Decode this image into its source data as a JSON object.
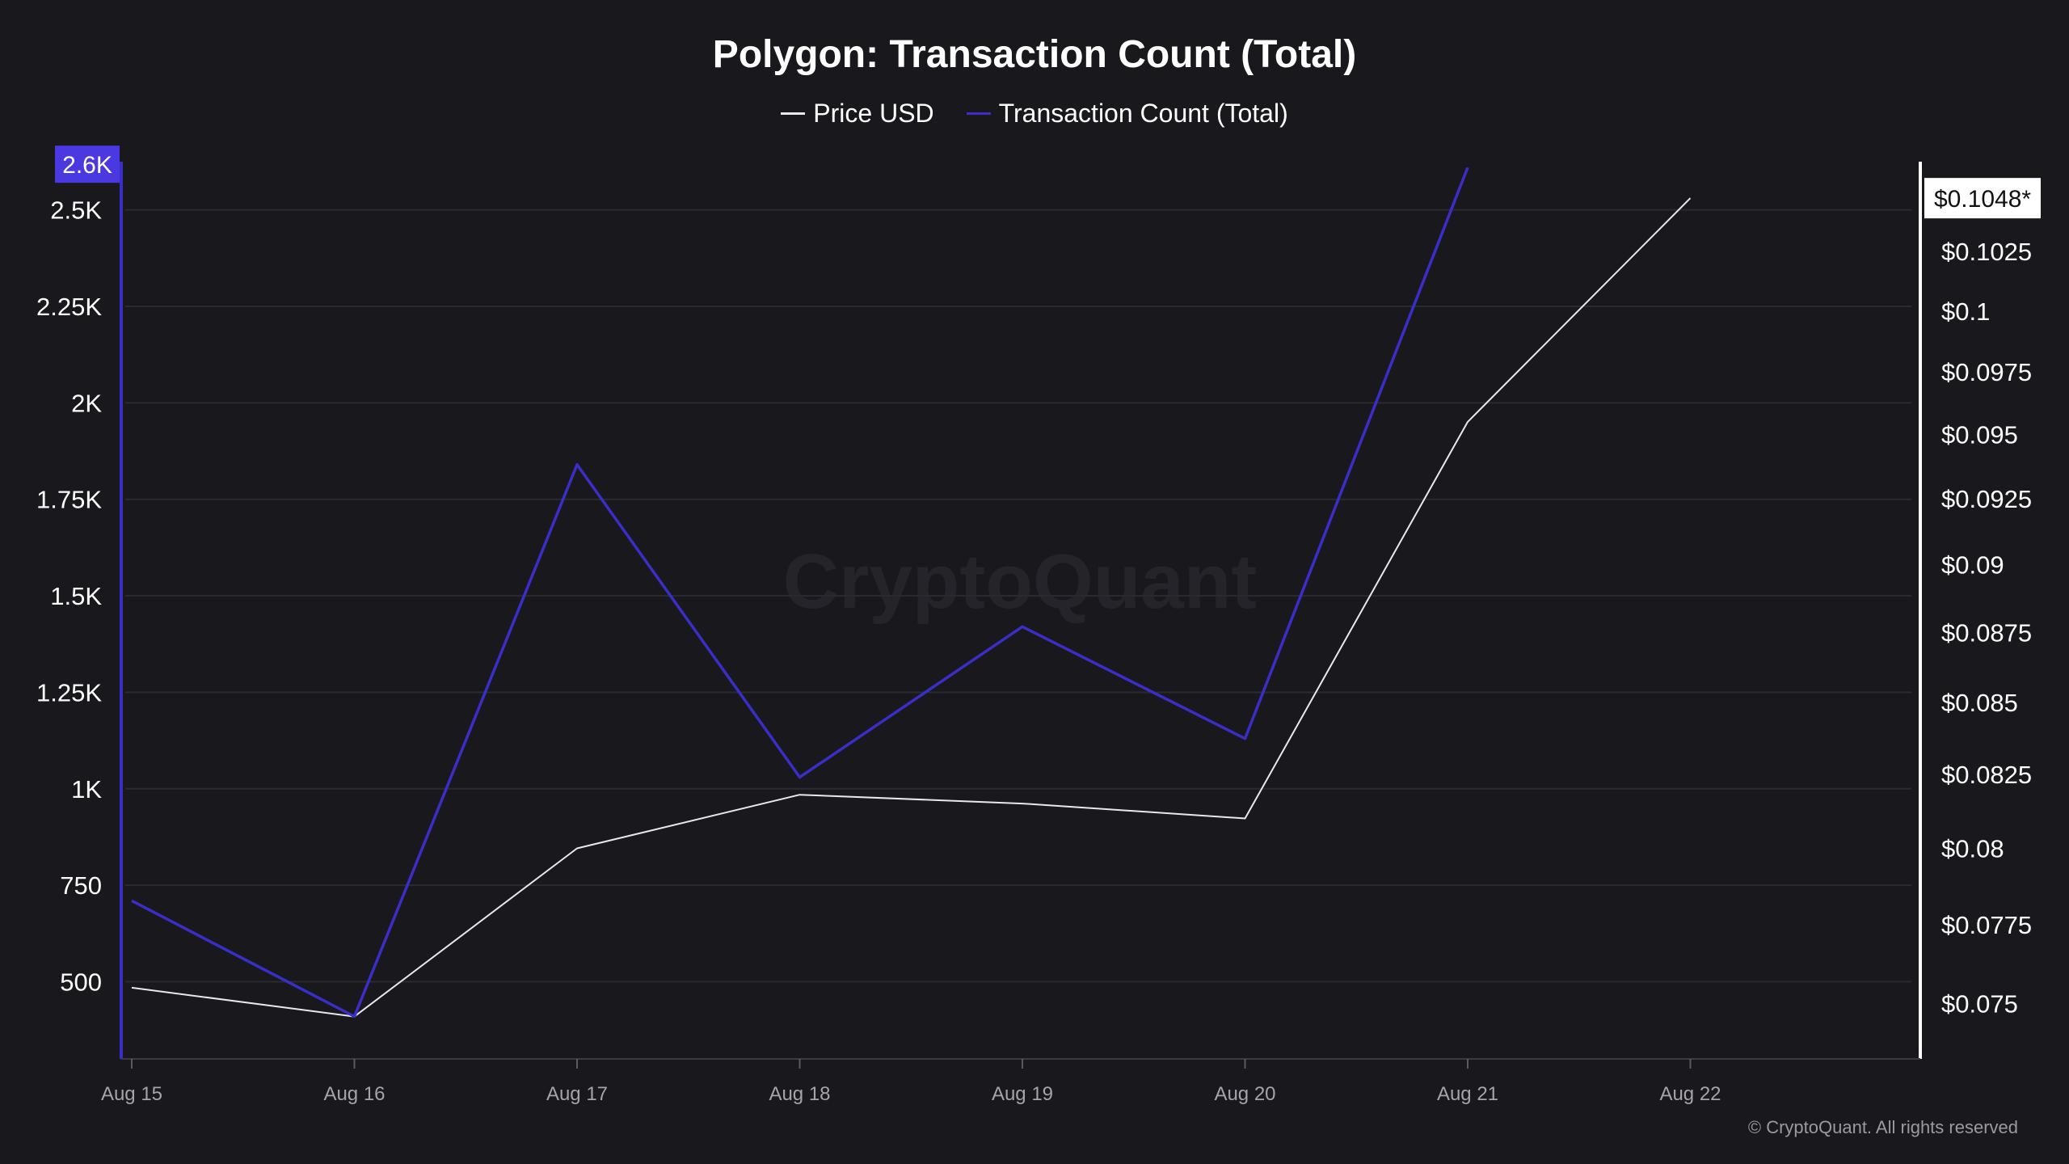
{
  "colors": {
    "background": "#18181d",
    "grid": "#2a2a31",
    "price_line": "#e8e8ee",
    "tx_line": "#3a2ec8",
    "left_axis": "#3a2ec8",
    "right_axis": "#ffffff",
    "left_marker_bg": "#4a38e0",
    "right_marker_bg": "#ffffff",
    "tick_text": "#ffffff",
    "x_tick_text": "#a4a4ad",
    "watermark": "#24242a"
  },
  "watermark": "CryptoQuant",
  "copyright": "© CryptoQuant. All rights reserved",
  "chart_data": {
    "type": "line",
    "title": "Polygon: Transaction Count (Total)",
    "categories": [
      "Aug 15",
      "Aug 16",
      "Aug 17",
      "Aug 18",
      "Aug 19",
      "Aug 20",
      "Aug 21",
      "Aug 22"
    ],
    "series": [
      {
        "name": "Price USD",
        "axis": "right",
        "color": "#e8e8ee",
        "values": [
          0.0755,
          0.0746,
          0.08,
          0.0818,
          0.0815,
          0.081,
          0.0955,
          0.1048
        ]
      },
      {
        "name": "Transaction Count (Total)",
        "axis": "left",
        "color": "#3a2ec8",
        "values": [
          710,
          410,
          1840,
          1030,
          1420,
          1130,
          2610,
          null
        ]
      }
    ],
    "left_axis": {
      "ticks": [
        500,
        750,
        1000,
        1250,
        1500,
        1750,
        2000,
        2250,
        2500
      ],
      "tick_labels": [
        "500",
        "750",
        "1K",
        "1.25K",
        "1.5K",
        "1.75K",
        "2K",
        "2.25K",
        "2.5K"
      ],
      "range": [
        300,
        2625
      ],
      "last_value_label": "2.6K",
      "last_value": 2610
    },
    "right_axis": {
      "ticks": [
        0.075,
        0.0775,
        0.08,
        0.0825,
        0.085,
        0.0875,
        0.09,
        0.0925,
        0.095,
        0.0975,
        0.1,
        0.1025
      ],
      "tick_labels": [
        "$0.075",
        "$0.0775",
        "$0.08",
        "$0.0825",
        "$0.085",
        "$0.0875",
        "$0.09",
        "$0.0925",
        "$0.095",
        "$0.0975",
        "$0.1",
        "$0.1025"
      ],
      "scale": "log",
      "range": [
        0.0733,
        0.1064
      ],
      "last_value_label": "$0.1048*",
      "last_value": 0.1048
    },
    "grid": true,
    "legend_position": "top-center"
  }
}
